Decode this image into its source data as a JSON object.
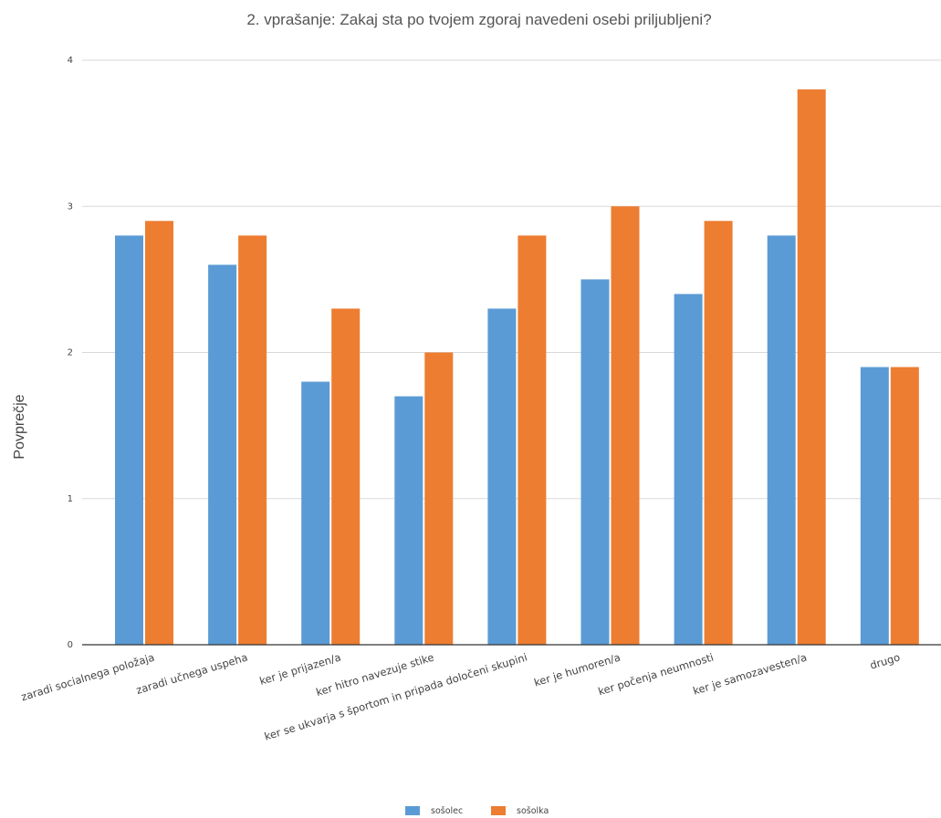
{
  "chart_data": {
    "type": "bar",
    "title": "2. vprašanje: Zakaj sta po tvojem zgoraj navedeni osebi priljubljeni?",
    "xlabel": "",
    "ylabel": "Povprečje",
    "ylim": [
      0,
      4
    ],
    "yticks": [
      "0",
      "1",
      "2",
      "3",
      "4"
    ],
    "grid": true,
    "legend_position": "bottom",
    "categories": [
      "zaradi socialnega položaja",
      "zaradi učnega uspeha",
      "ker je prijazen/a",
      "ker hitro navezuje stike",
      "ker se ukvarja s športom in pripada določeni skupini",
      "ker je humoren/a",
      "ker počenja neumnosti",
      "ker je samozavesten/a",
      "drugo"
    ],
    "series": [
      {
        "name": "sošolec",
        "color": "#5b9bd5",
        "values": [
          2.8,
          2.6,
          1.8,
          1.7,
          2.3,
          2.5,
          2.4,
          2.8,
          1.9
        ]
      },
      {
        "name": "sošolka",
        "color": "#ed7d31",
        "values": [
          2.9,
          2.8,
          2.3,
          2.0,
          2.8,
          3.0,
          2.9,
          3.8,
          1.9
        ]
      }
    ]
  }
}
